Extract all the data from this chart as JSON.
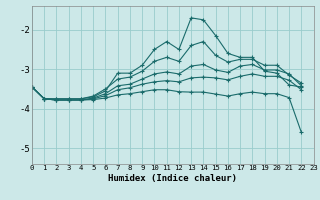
{
  "xlabel": "Humidex (Indice chaleur)",
  "bg_color": "#cce8e8",
  "grid_color": "#99cccc",
  "line_color": "#1a6b6b",
  "xlim": [
    0,
    23
  ],
  "ylim": [
    -5.4,
    -1.4
  ],
  "yticks": [
    -5,
    -4,
    -3,
    -2
  ],
  "xticks": [
    0,
    1,
    2,
    3,
    4,
    5,
    6,
    7,
    8,
    9,
    10,
    11,
    12,
    13,
    14,
    15,
    16,
    17,
    18,
    19,
    20,
    21,
    22,
    23
  ],
  "lines": [
    {
      "x": [
        0,
        1,
        2,
        3,
        4,
        5,
        6,
        7,
        8,
        9,
        10,
        11,
        12,
        13,
        14,
        15,
        16,
        17,
        18,
        19,
        20,
        21,
        22
      ],
      "y": [
        -3.45,
        -3.75,
        -3.75,
        -3.75,
        -3.75,
        -3.7,
        -3.55,
        -3.1,
        -3.1,
        -2.9,
        -2.5,
        -2.3,
        -2.5,
        -1.7,
        -1.75,
        -2.15,
        -2.6,
        -2.7,
        -2.7,
        -3.05,
        -3.1,
        -3.4,
        -3.45
      ]
    },
    {
      "x": [
        0,
        1,
        2,
        3,
        4,
        5,
        6,
        7,
        8,
        9,
        10,
        11,
        12,
        13,
        14,
        15,
        16,
        17,
        18,
        19,
        20,
        21,
        22
      ],
      "y": [
        -3.45,
        -3.75,
        -3.75,
        -3.75,
        -3.75,
        -3.68,
        -3.5,
        -3.25,
        -3.2,
        -3.05,
        -2.8,
        -2.7,
        -2.8,
        -2.4,
        -2.3,
        -2.65,
        -2.82,
        -2.75,
        -2.75,
        -2.9,
        -2.9,
        -3.15,
        -3.35
      ]
    },
    {
      "x": [
        0,
        1,
        2,
        3,
        4,
        5,
        6,
        7,
        8,
        9,
        10,
        11,
        12,
        13,
        14,
        15,
        16,
        17,
        18,
        19,
        20,
        21,
        22
      ],
      "y": [
        -3.45,
        -3.75,
        -3.78,
        -3.78,
        -3.78,
        -3.73,
        -3.62,
        -3.42,
        -3.38,
        -3.25,
        -3.12,
        -3.07,
        -3.12,
        -2.92,
        -2.88,
        -3.02,
        -3.08,
        -2.92,
        -2.88,
        -3.02,
        -3.02,
        -3.12,
        -3.42
      ]
    },
    {
      "x": [
        0,
        1,
        2,
        3,
        4,
        5,
        6,
        7,
        8,
        9,
        10,
        11,
        12,
        13,
        14,
        15,
        16,
        17,
        18,
        19,
        20,
        21,
        22
      ],
      "y": [
        -3.45,
        -3.75,
        -3.78,
        -3.78,
        -3.78,
        -3.75,
        -3.67,
        -3.52,
        -3.47,
        -3.38,
        -3.32,
        -3.29,
        -3.32,
        -3.22,
        -3.2,
        -3.22,
        -3.27,
        -3.18,
        -3.12,
        -3.18,
        -3.18,
        -3.28,
        -3.52
      ]
    },
    {
      "x": [
        0,
        1,
        2,
        3,
        4,
        5,
        6,
        7,
        8,
        9,
        10,
        11,
        12,
        13,
        14,
        15,
        16,
        17,
        18,
        19,
        20,
        21,
        22
      ],
      "y": [
        -3.45,
        -3.75,
        -3.78,
        -3.78,
        -3.78,
        -3.77,
        -3.73,
        -3.65,
        -3.62,
        -3.57,
        -3.52,
        -3.52,
        -3.57,
        -3.58,
        -3.58,
        -3.63,
        -3.68,
        -3.62,
        -3.58,
        -3.62,
        -3.62,
        -3.72,
        -4.6
      ]
    }
  ]
}
